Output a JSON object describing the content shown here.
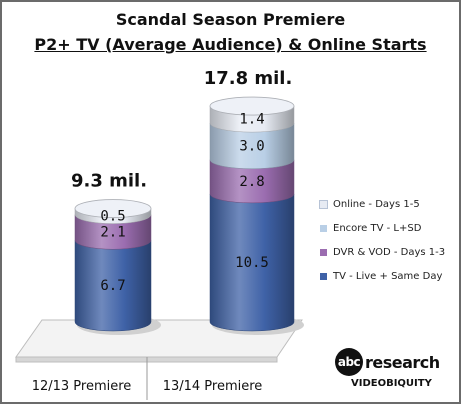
{
  "chart_data": {
    "type": "bar",
    "stacked": true,
    "title": "Scandal Season Premiere",
    "subtitle": "P2+ TV (Average Audience) & Online Starts",
    "categories": [
      "12/13 Premiere",
      "13/14 Premiere"
    ],
    "totals": [
      "9.3 mil.",
      "17.8 mil."
    ],
    "series": [
      {
        "name": "TV - Live + Same Day",
        "values": [
          6.7,
          10.5
        ],
        "color": "#3f62a7"
      },
      {
        "name": "DVR & VOD - Days 1-3",
        "values": [
          2.1,
          2.8
        ],
        "color": "#9b6db0"
      },
      {
        "name": "Encore TV - L+SD",
        "values": [
          null,
          3.0
        ],
        "color": "#b9cfe6"
      },
      {
        "name": "Online - Days 1-5",
        "values": [
          0.5,
          1.4
        ],
        "color": "#e7ebf3"
      }
    ],
    "legend_position": "right"
  },
  "branding": {
    "badge": "abc",
    "word": "research",
    "sub": "VIDEOBIQUITY"
  }
}
